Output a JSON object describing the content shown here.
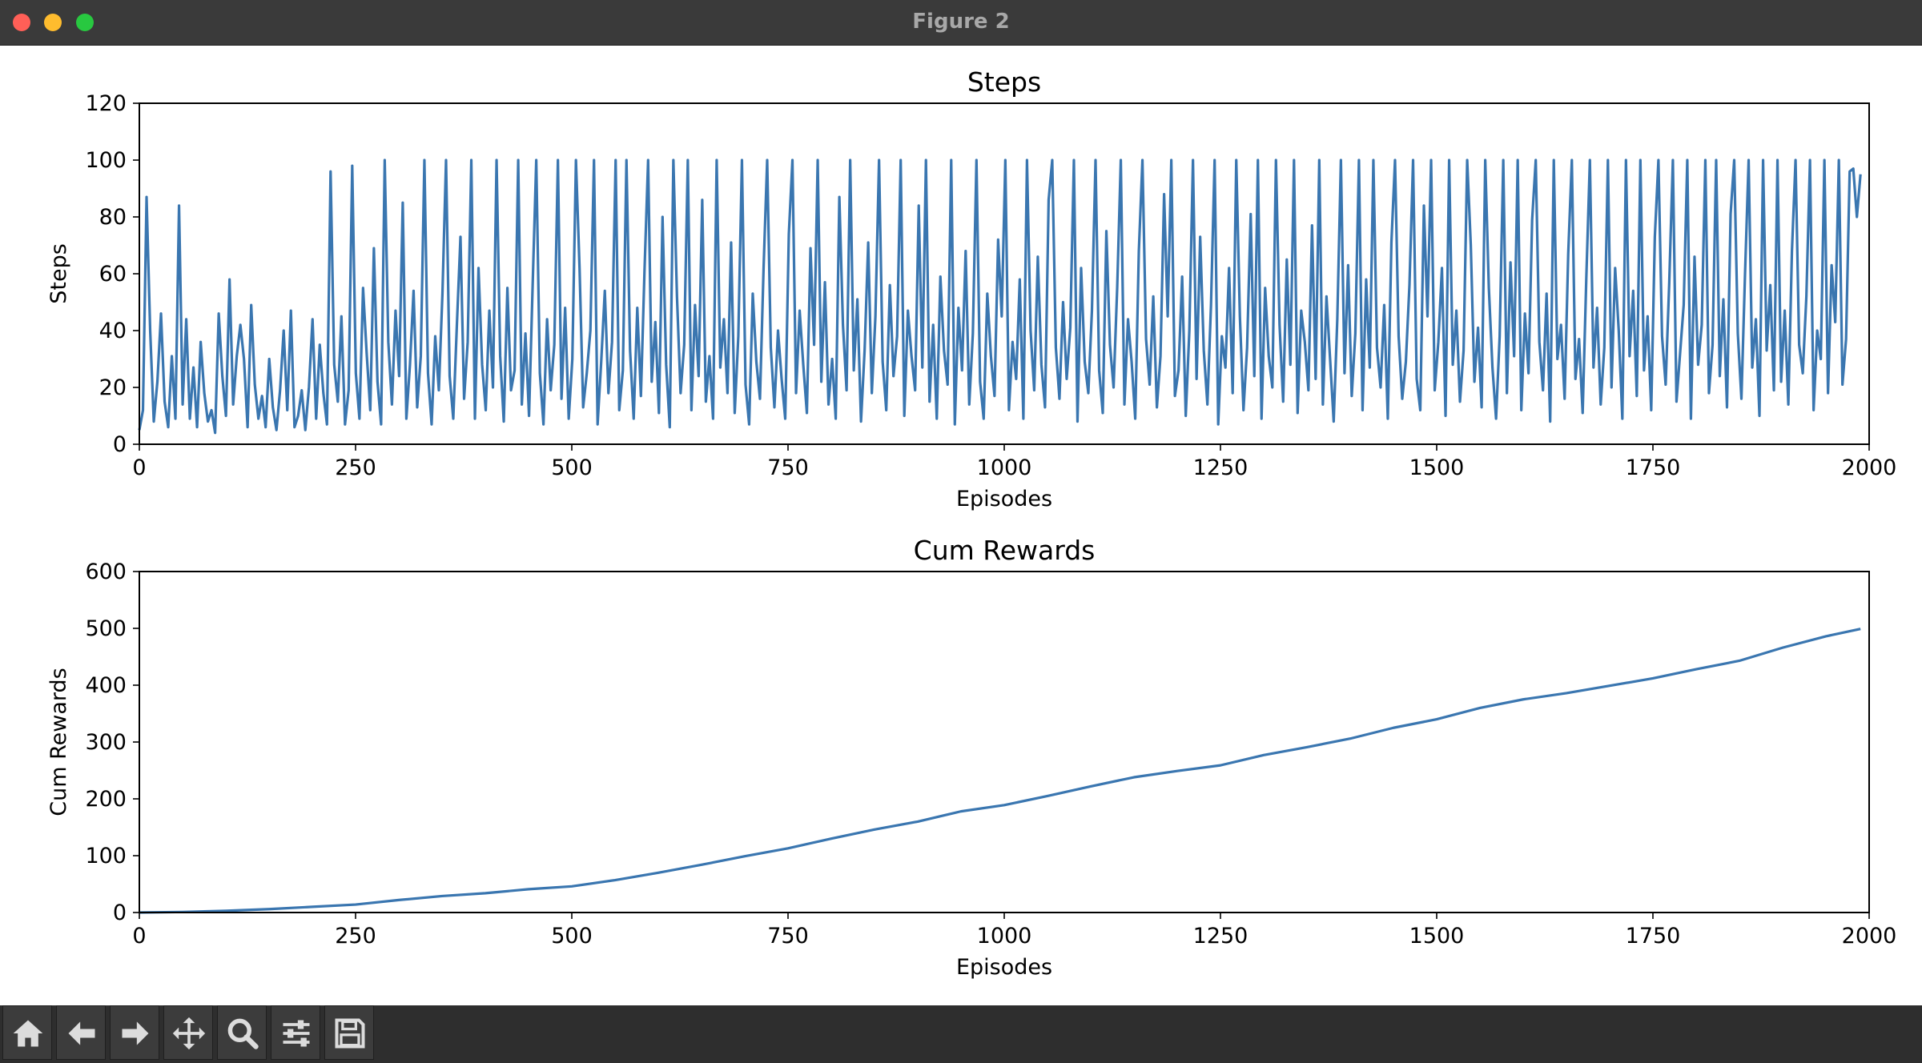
{
  "window": {
    "title": "Figure 2"
  },
  "toolbar": {
    "buttons": [
      {
        "icon": "home-icon"
      },
      {
        "icon": "back-icon"
      },
      {
        "icon": "forward-icon"
      },
      {
        "icon": "pan-icon"
      },
      {
        "icon": "zoom-icon"
      },
      {
        "icon": "configure-subplots-icon"
      },
      {
        "icon": "save-icon"
      }
    ]
  },
  "colors": {
    "line": "#3a76b0"
  },
  "chart_data": [
    {
      "type": "line",
      "title": "Steps",
      "xlabel": "Episodes",
      "ylabel": "Steps",
      "xlim": [
        0,
        2000
      ],
      "ylim": [
        0,
        120
      ],
      "xticks": [
        0,
        250,
        500,
        750,
        1000,
        1250,
        1500,
        1750,
        2000
      ],
      "yticks": [
        0,
        20,
        40,
        60,
        80,
        100,
        120
      ],
      "grid": false,
      "series": [
        {
          "x_start": 0,
          "x_end": 1990,
          "values": [
            5,
            12,
            87,
            40,
            8,
            22,
            46,
            15,
            6,
            31,
            9,
            84,
            14,
            44,
            9,
            27,
            6,
            36,
            18,
            8,
            12,
            4,
            46,
            24,
            10,
            58,
            14,
            31,
            42,
            30,
            6,
            49,
            21,
            9,
            17,
            6,
            30,
            13,
            5,
            19,
            40,
            12,
            47,
            6,
            10,
            19,
            5,
            20,
            44,
            9,
            35,
            18,
            7,
            96,
            28,
            15,
            45,
            7,
            19,
            98,
            25,
            9,
            55,
            32,
            12,
            69,
            22,
            7,
            100,
            36,
            14,
            47,
            24,
            85,
            9,
            28,
            54,
            13,
            31,
            100,
            25,
            7,
            38,
            19,
            53,
            100,
            24,
            9,
            42,
            73,
            16,
            36,
            100,
            9,
            62,
            28,
            12,
            47,
            20,
            100,
            31,
            8,
            55,
            19,
            26,
            100,
            14,
            39,
            10,
            56,
            100,
            25,
            7,
            44,
            19,
            35,
            100,
            16,
            48,
            9,
            30,
            100,
            62,
            13,
            25,
            40,
            100,
            7,
            29,
            54,
            18,
            36,
            100,
            12,
            26,
            100,
            33,
            9,
            48,
            17,
            61,
            100,
            22,
            43,
            11,
            80,
            28,
            6,
            100,
            52,
            18,
            35,
            100,
            12,
            49,
            24,
            86,
            15,
            31,
            9,
            100,
            27,
            44,
            18,
            71,
            11,
            38,
            100,
            21,
            7,
            53,
            29,
            16,
            62,
            100,
            34,
            13,
            40,
            23,
            9,
            74,
            100,
            18,
            47,
            28,
            11,
            69,
            35,
            100,
            22,
            57,
            14,
            30,
            9,
            87,
            42,
            19,
            100,
            26,
            51,
            8,
            33,
            71,
            18,
            45,
            100,
            29,
            12,
            56,
            24,
            38,
            100,
            10,
            47,
            31,
            19,
            84,
            27,
            100,
            15,
            42,
            9,
            59,
            33,
            21,
            100,
            7,
            48,
            26,
            68,
            14,
            39,
            100,
            22,
            9,
            53,
            31,
            17,
            72,
            45,
            100,
            12,
            36,
            23,
            58,
            9,
            100,
            40,
            19,
            66,
            28,
            13,
            86,
            100,
            34,
            16,
            50,
            23,
            41,
            100,
            8,
            62,
            29,
            18,
            47,
            100,
            26,
            11,
            75,
            35,
            20,
            55,
            100,
            14,
            44,
            29,
            9,
            68,
            100,
            37,
            21,
            52,
            13,
            31,
            88,
            45,
            100,
            17,
            26,
            59,
            10,
            40,
            100,
            23,
            73,
            33,
            14,
            49,
            100,
            7,
            38,
            27,
            62,
            18,
            100,
            45,
            12,
            34,
            81,
            24,
            100,
            9,
            55,
            31,
            20,
            100,
            42,
            15,
            65,
            28,
            100,
            11,
            47,
            36,
            19,
            77,
            23,
            100,
            14,
            52,
            30,
            8,
            44,
            100,
            25,
            63,
            17,
            39,
            100,
            12,
            58,
            27,
            100,
            34,
            20,
            49,
            9,
            71,
            100,
            38,
            16,
            29,
            56,
            100,
            23,
            12,
            84,
            45,
            100,
            19,
            36,
            62,
            10,
            100,
            28,
            47,
            15,
            33,
            100,
            70,
            22,
            41,
            13,
            100,
            55,
            27,
            9,
            38,
            100,
            18,
            64,
            31,
            100,
            12,
            46,
            25,
            79,
            100,
            36,
            19,
            53,
            8,
            100,
            30,
            42,
            16,
            67,
            100,
            23,
            37,
            11,
            58,
            100,
            27,
            48,
            14,
            34,
            100,
            20,
            62,
            40,
            9,
            100,
            31,
            54,
            17,
            100,
            26,
            45,
            12,
            73,
            100,
            38,
            21,
            57,
            100,
            15,
            32,
            49,
            100,
            9,
            66,
            28,
            42,
            100,
            18,
            35,
            100,
            24,
            51,
            13,
            81,
            100,
            39,
            16,
            60,
            100,
            27,
            44,
            10,
            100,
            33,
            56,
            19,
            100,
            22,
            47,
            14,
            68,
            100,
            35,
            25,
            52,
            100,
            12,
            40,
            30,
            100,
            18,
            63,
            43,
            100,
            21,
            37,
            96,
            97,
            80,
            95
          ]
        }
      ]
    },
    {
      "type": "line",
      "title": "Cum Rewards",
      "xlabel": "Episodes",
      "ylabel": "Cum Rewards",
      "xlim": [
        0,
        2000
      ],
      "ylim": [
        0,
        600
      ],
      "xticks": [
        0,
        250,
        500,
        750,
        1000,
        1250,
        1500,
        1750,
        2000
      ],
      "yticks": [
        0,
        100,
        200,
        300,
        400,
        500,
        600
      ],
      "grid": false,
      "series": [
        {
          "x": [
            0,
            50,
            100,
            150,
            200,
            250,
            300,
            350,
            400,
            450,
            500,
            550,
            600,
            650,
            700,
            750,
            800,
            850,
            900,
            950,
            1000,
            1050,
            1100,
            1150,
            1200,
            1250,
            1300,
            1350,
            1400,
            1450,
            1500,
            1550,
            1600,
            1650,
            1700,
            1750,
            1800,
            1850,
            1900,
            1950,
            1990
          ],
          "values": [
            0,
            1,
            3,
            6,
            10,
            14,
            22,
            29,
            34,
            41,
            46,
            57,
            70,
            84,
            99,
            113,
            130,
            146,
            160,
            178,
            189,
            205,
            222,
            238,
            249,
            259,
            277,
            291,
            306,
            325,
            340,
            360,
            375,
            386,
            399,
            412,
            428,
            443,
            466,
            486,
            499
          ]
        }
      ]
    }
  ]
}
